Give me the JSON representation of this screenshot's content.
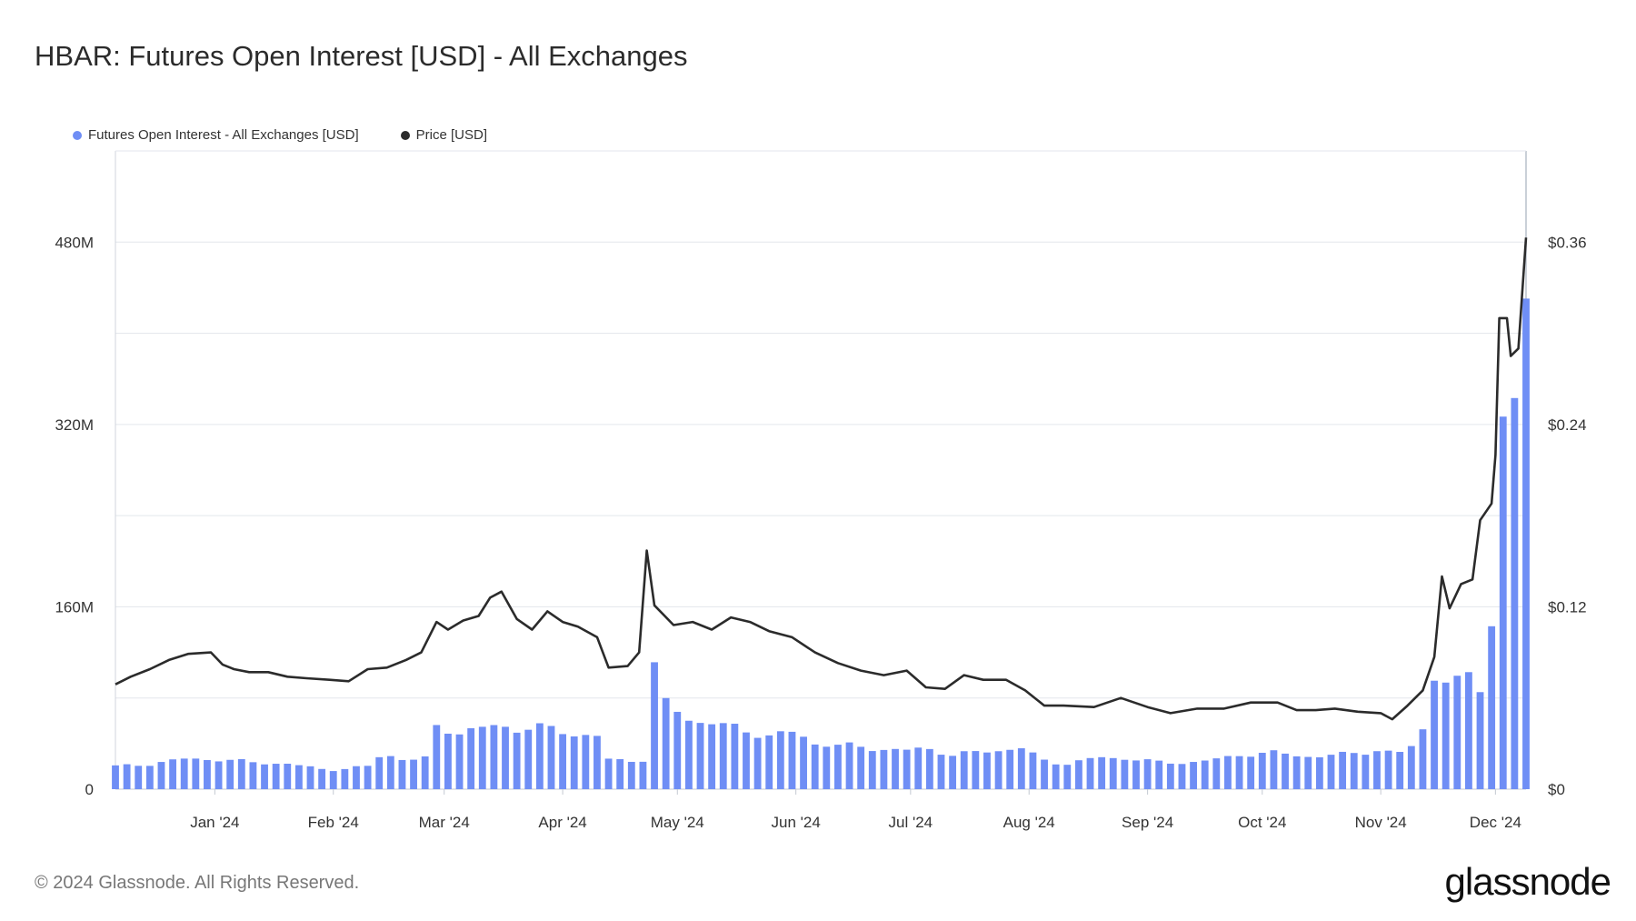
{
  "title": "HBAR: Futures Open Interest [USD] - All Exchanges",
  "legend": [
    {
      "label": "Futures Open Interest - All Exchanges [USD]",
      "color": "#6f8ef5"
    },
    {
      "label": "Price [USD]",
      "color": "#2b2b2b"
    }
  ],
  "footer": "© 2024 Glassnode. All Rights Reserved.",
  "logo": "glassnode",
  "chart_data": {
    "type": "bar+line",
    "x_ticks": [
      "Jan '24",
      "Feb '24",
      "Mar '24",
      "Apr '24",
      "May '24",
      "Jun '24",
      "Jul '24",
      "Aug '24",
      "Sep '24",
      "Oct '24",
      "Nov '24",
      "Dec '24"
    ],
    "x_range": [
      "2023-12-06",
      "2024-12-09"
    ],
    "y_left": {
      "ticks": [
        "0",
        "160M",
        "320M",
        "480M"
      ],
      "tick_values": [
        0,
        160,
        320,
        480
      ],
      "unit": "M USD",
      "ylim": [
        0,
        560
      ]
    },
    "y_right": {
      "ticks": [
        "$0",
        "$0.12",
        "$0.24",
        "$0.36"
      ],
      "tick_values": [
        0,
        0.12,
        0.24,
        0.36
      ],
      "ylim": [
        0,
        0.42
      ]
    },
    "grid": true,
    "legend_position": "top-left",
    "series": [
      {
        "name": "Futures Open Interest - All Exchanges [USD]",
        "kind": "bar",
        "axis": "left",
        "color": "#6f8ef5",
        "points": [
          [
            "2023-12-06",
            20
          ],
          [
            "2023-12-15",
            22
          ],
          [
            "2023-12-25",
            27
          ],
          [
            "2024-01-01",
            26
          ],
          [
            "2024-01-10",
            24
          ],
          [
            "2024-01-20",
            22
          ],
          [
            "2024-01-31",
            17
          ],
          [
            "2024-02-05",
            18
          ],
          [
            "2024-02-10",
            20
          ],
          [
            "2024-02-14",
            32
          ],
          [
            "2024-02-20",
            25
          ],
          [
            "2024-02-25",
            27
          ],
          [
            "2024-02-28",
            55
          ],
          [
            "2024-03-05",
            50
          ],
          [
            "2024-03-10",
            52
          ],
          [
            "2024-03-15",
            57
          ],
          [
            "2024-03-20",
            52
          ],
          [
            "2024-03-25",
            55
          ],
          [
            "2024-03-30",
            52
          ],
          [
            "2024-04-05",
            48
          ],
          [
            "2024-04-10",
            46
          ],
          [
            "2024-04-13",
            26
          ],
          [
            "2024-04-20",
            25
          ],
          [
            "2024-04-23",
            26
          ],
          [
            "2024-04-24",
            118
          ],
          [
            "2024-04-28",
            75
          ],
          [
            "2024-05-05",
            60
          ],
          [
            "2024-05-10",
            58
          ],
          [
            "2024-05-15",
            55
          ],
          [
            "2024-05-20",
            50
          ],
          [
            "2024-05-25",
            47
          ],
          [
            "2024-06-01",
            50
          ],
          [
            "2024-06-06",
            40
          ],
          [
            "2024-06-15",
            38
          ],
          [
            "2024-06-20",
            36
          ],
          [
            "2024-06-30",
            34
          ],
          [
            "2024-07-05",
            36
          ],
          [
            "2024-07-12",
            30
          ],
          [
            "2024-07-20",
            33
          ],
          [
            "2024-07-30",
            36
          ],
          [
            "2024-08-05",
            25
          ],
          [
            "2024-08-10",
            22
          ],
          [
            "2024-08-20",
            28
          ],
          [
            "2024-08-30",
            26
          ],
          [
            "2024-09-05",
            23
          ],
          [
            "2024-09-15",
            24
          ],
          [
            "2024-09-25",
            30
          ],
          [
            "2024-10-05",
            32
          ],
          [
            "2024-10-15",
            28
          ],
          [
            "2024-10-25",
            32
          ],
          [
            "2024-11-01",
            34
          ],
          [
            "2024-11-05",
            30
          ],
          [
            "2024-11-10",
            40
          ],
          [
            "2024-11-13",
            60
          ],
          [
            "2024-11-15",
            100
          ],
          [
            "2024-11-20",
            90
          ],
          [
            "2024-11-24",
            100
          ],
          [
            "2024-11-28",
            88
          ],
          [
            "2024-12-01",
            178
          ],
          [
            "2024-12-02",
            205
          ],
          [
            "2024-12-03",
            320
          ],
          [
            "2024-12-05",
            343
          ],
          [
            "2024-12-07",
            330
          ],
          [
            "2024-12-09",
            418
          ]
        ]
      },
      {
        "name": "Price [USD]",
        "kind": "line",
        "axis": "right",
        "color": "#2b2b2b",
        "points": [
          [
            "2023-12-06",
            0.069
          ],
          [
            "2023-12-10",
            0.074
          ],
          [
            "2023-12-15",
            0.079
          ],
          [
            "2023-12-20",
            0.085
          ],
          [
            "2023-12-25",
            0.089
          ],
          [
            "2023-12-31",
            0.09
          ],
          [
            "2024-01-03",
            0.082
          ],
          [
            "2024-01-06",
            0.079
          ],
          [
            "2024-01-10",
            0.077
          ],
          [
            "2024-01-15",
            0.077
          ],
          [
            "2024-01-20",
            0.074
          ],
          [
            "2024-01-25",
            0.073
          ],
          [
            "2024-01-31",
            0.072
          ],
          [
            "2024-02-05",
            0.071
          ],
          [
            "2024-02-10",
            0.079
          ],
          [
            "2024-02-15",
            0.08
          ],
          [
            "2024-02-20",
            0.085
          ],
          [
            "2024-02-24",
            0.09
          ],
          [
            "2024-02-28",
            0.11
          ],
          [
            "2024-03-02",
            0.105
          ],
          [
            "2024-03-06",
            0.111
          ],
          [
            "2024-03-10",
            0.114
          ],
          [
            "2024-03-13",
            0.126
          ],
          [
            "2024-03-16",
            0.13
          ],
          [
            "2024-03-20",
            0.112
          ],
          [
            "2024-03-24",
            0.105
          ],
          [
            "2024-03-28",
            0.117
          ],
          [
            "2024-04-01",
            0.11
          ],
          [
            "2024-04-05",
            0.107
          ],
          [
            "2024-04-10",
            0.1
          ],
          [
            "2024-04-13",
            0.08
          ],
          [
            "2024-04-18",
            0.081
          ],
          [
            "2024-04-21",
            0.09
          ],
          [
            "2024-04-23",
            0.157
          ],
          [
            "2024-04-25",
            0.121
          ],
          [
            "2024-04-30",
            0.108
          ],
          [
            "2024-05-05",
            0.11
          ],
          [
            "2024-05-10",
            0.105
          ],
          [
            "2024-05-15",
            0.113
          ],
          [
            "2024-05-20",
            0.11
          ],
          [
            "2024-05-25",
            0.104
          ],
          [
            "2024-05-31",
            0.1
          ],
          [
            "2024-06-06",
            0.09
          ],
          [
            "2024-06-12",
            0.083
          ],
          [
            "2024-06-18",
            0.078
          ],
          [
            "2024-06-24",
            0.075
          ],
          [
            "2024-06-30",
            0.078
          ],
          [
            "2024-07-05",
            0.067
          ],
          [
            "2024-07-10",
            0.066
          ],
          [
            "2024-07-15",
            0.075
          ],
          [
            "2024-07-20",
            0.072
          ],
          [
            "2024-07-26",
            0.072
          ],
          [
            "2024-07-31",
            0.065
          ],
          [
            "2024-08-05",
            0.055
          ],
          [
            "2024-08-10",
            0.055
          ],
          [
            "2024-08-18",
            0.054
          ],
          [
            "2024-08-25",
            0.06
          ],
          [
            "2024-09-01",
            0.054
          ],
          [
            "2024-09-07",
            0.05
          ],
          [
            "2024-09-14",
            0.053
          ],
          [
            "2024-09-21",
            0.053
          ],
          [
            "2024-09-28",
            0.057
          ],
          [
            "2024-10-05",
            0.057
          ],
          [
            "2024-10-10",
            0.052
          ],
          [
            "2024-10-15",
            0.052
          ],
          [
            "2024-10-20",
            0.053
          ],
          [
            "2024-10-26",
            0.051
          ],
          [
            "2024-11-01",
            0.05
          ],
          [
            "2024-11-04",
            0.046
          ],
          [
            "2024-11-08",
            0.055
          ],
          [
            "2024-11-12",
            0.065
          ],
          [
            "2024-11-15",
            0.087
          ],
          [
            "2024-11-17",
            0.14
          ],
          [
            "2024-11-19",
            0.119
          ],
          [
            "2024-11-22",
            0.135
          ],
          [
            "2024-11-25",
            0.138
          ],
          [
            "2024-11-27",
            0.177
          ],
          [
            "2024-11-30",
            0.188
          ],
          [
            "2024-12-01",
            0.22
          ],
          [
            "2024-12-02",
            0.31
          ],
          [
            "2024-12-04",
            0.31
          ],
          [
            "2024-12-05",
            0.285
          ],
          [
            "2024-12-07",
            0.29
          ],
          [
            "2024-12-09",
            0.363
          ]
        ]
      }
    ]
  }
}
